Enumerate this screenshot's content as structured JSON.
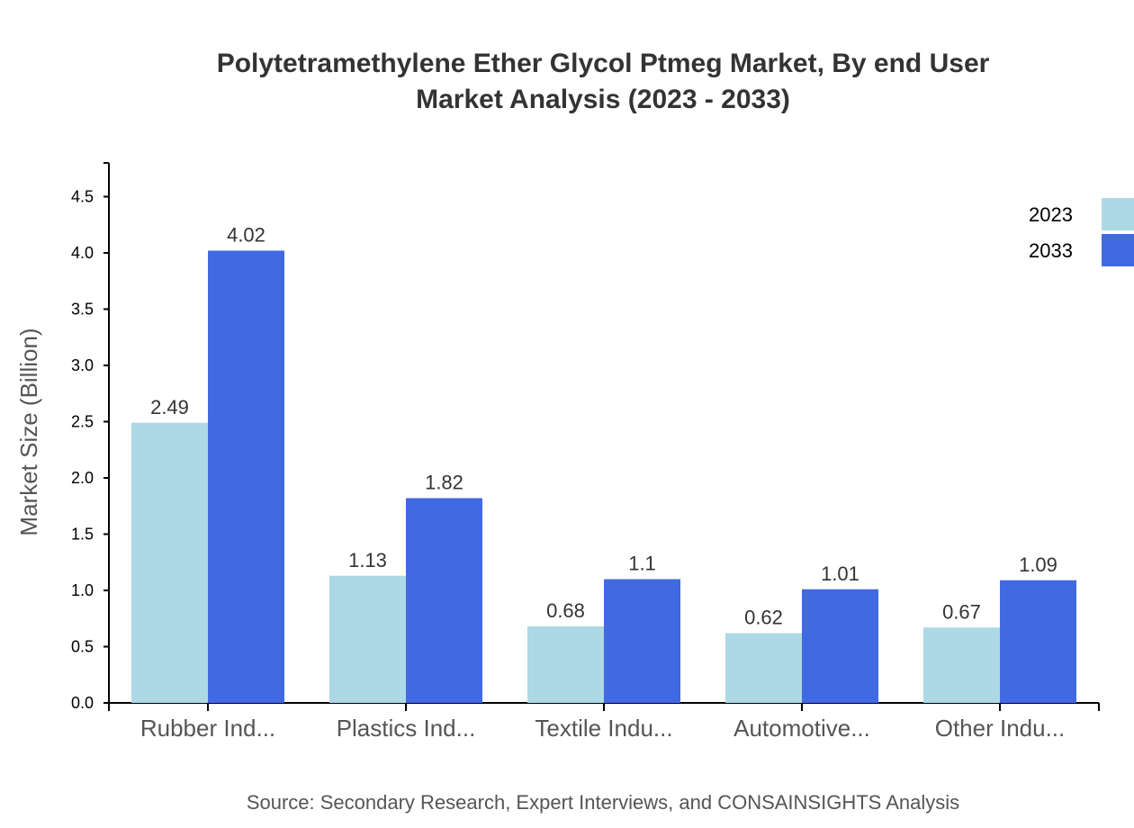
{
  "chart_data": {
    "type": "bar",
    "title_lines": [
      "Polytetramethylene Ether Glycol Ptmeg Market, By end User",
      "Market Analysis (2023 - 2033)"
    ],
    "xlabel": "",
    "ylabel": "Market Size (Billion)",
    "ylim": [
      0,
      4.8
    ],
    "yticks": [
      "0.0",
      "0.5",
      "1.0",
      "1.5",
      "2.0",
      "2.5",
      "3.0",
      "3.5",
      "4.0",
      "4.5"
    ],
    "categories": [
      "Rubber Ind...",
      "Plastics Ind...",
      "Textile Indu...",
      "Automotive...",
      "Other Indu..."
    ],
    "series": [
      {
        "name": "2023",
        "color": "#add8e6",
        "values": [
          2.49,
          1.13,
          0.68,
          0.62,
          0.67
        ],
        "labels": [
          "2.49",
          "1.13",
          "0.68",
          "0.62",
          "0.67"
        ]
      },
      {
        "name": "2033",
        "color": "#4169e1",
        "values": [
          4.02,
          1.82,
          1.1,
          1.01,
          1.09
        ],
        "labels": [
          "4.02",
          "1.82",
          "1.1",
          "1.01",
          "1.09"
        ]
      }
    ],
    "legend_position": "top-right",
    "grid": false,
    "source": "Source: Secondary Research, Expert Interviews, and CONSAINSIGHTS Analysis"
  }
}
